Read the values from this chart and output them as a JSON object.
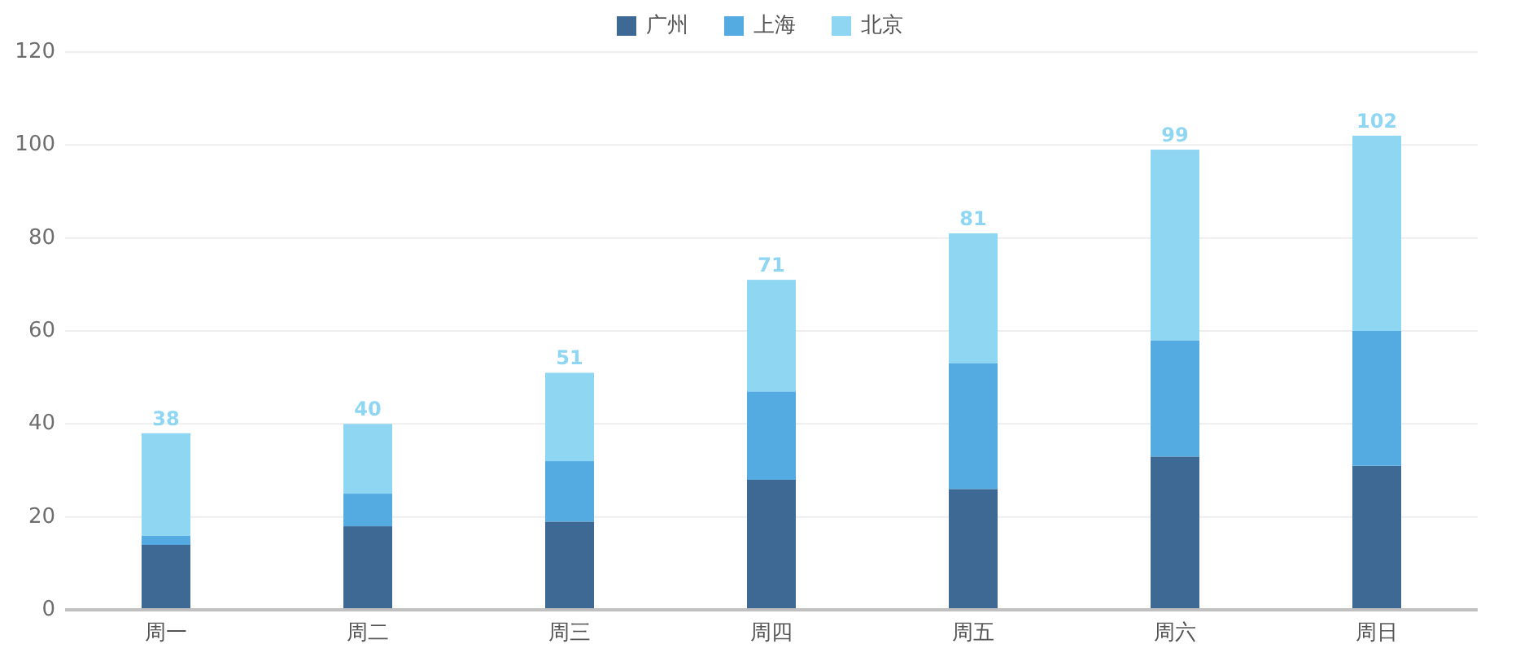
{
  "chart_data": {
    "type": "bar",
    "stacked": true,
    "categories": [
      "周一",
      "周二",
      "周三",
      "周四",
      "周五",
      "周六",
      "周日"
    ],
    "series": [
      {
        "name": "广州",
        "color": "#3e6994",
        "values": [
          14,
          18,
          19,
          28,
          26,
          33,
          31
        ]
      },
      {
        "name": "上海",
        "color": "#53abe2",
        "values": [
          2,
          7,
          13,
          19,
          27,
          25,
          29
        ]
      },
      {
        "name": "北京",
        "color": "#8ed6f2",
        "values": [
          22,
          15,
          19,
          24,
          28,
          41,
          42
        ]
      }
    ],
    "totals": [
      "38",
      "40",
      "51",
      "71",
      "81",
      "99",
      "102"
    ],
    "ylim": [
      0,
      120
    ],
    "yticks": [
      0,
      20,
      40,
      60,
      80,
      100,
      120
    ],
    "grid": "y",
    "legend": "top"
  }
}
